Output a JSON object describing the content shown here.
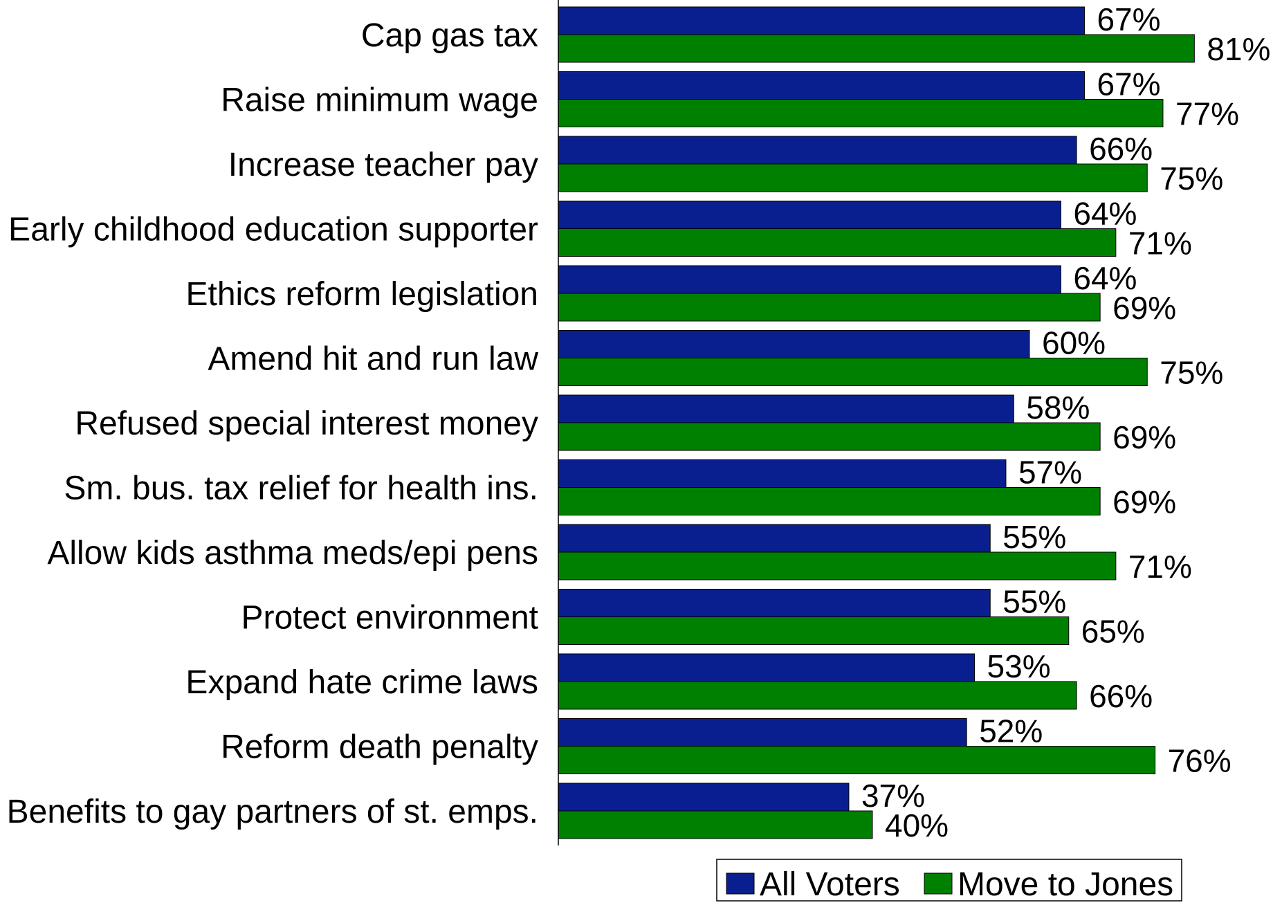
{
  "chart_data": {
    "type": "bar",
    "orientation": "horizontal",
    "title": "",
    "xlabel": "",
    "ylabel": "",
    "xlim": [
      0,
      100
    ],
    "grid": false,
    "legend_position": "bottom",
    "value_suffix": "%",
    "categories": [
      "Cap gas tax",
      "Raise minimum wage",
      "Increase teacher pay",
      "Early childhood education supporter",
      "Ethics reform legislation",
      "Amend hit and run law",
      "Refused special interest money",
      "Sm. bus. tax relief for health ins.",
      "Allow kids asthma meds/epi pens",
      "Protect environment",
      "Expand hate crime laws",
      "Reform death penalty",
      "Benefits to gay partners of st. emps."
    ],
    "series": [
      {
        "name": "All Voters",
        "color": "#0a1f8f",
        "values": [
          67,
          67,
          66,
          64,
          64,
          60,
          58,
          57,
          55,
          55,
          53,
          52,
          37
        ]
      },
      {
        "name": "Move to Jones",
        "color": "#008000",
        "values": [
          81,
          77,
          75,
          71,
          69,
          75,
          69,
          69,
          71,
          65,
          66,
          76,
          40
        ]
      }
    ]
  }
}
